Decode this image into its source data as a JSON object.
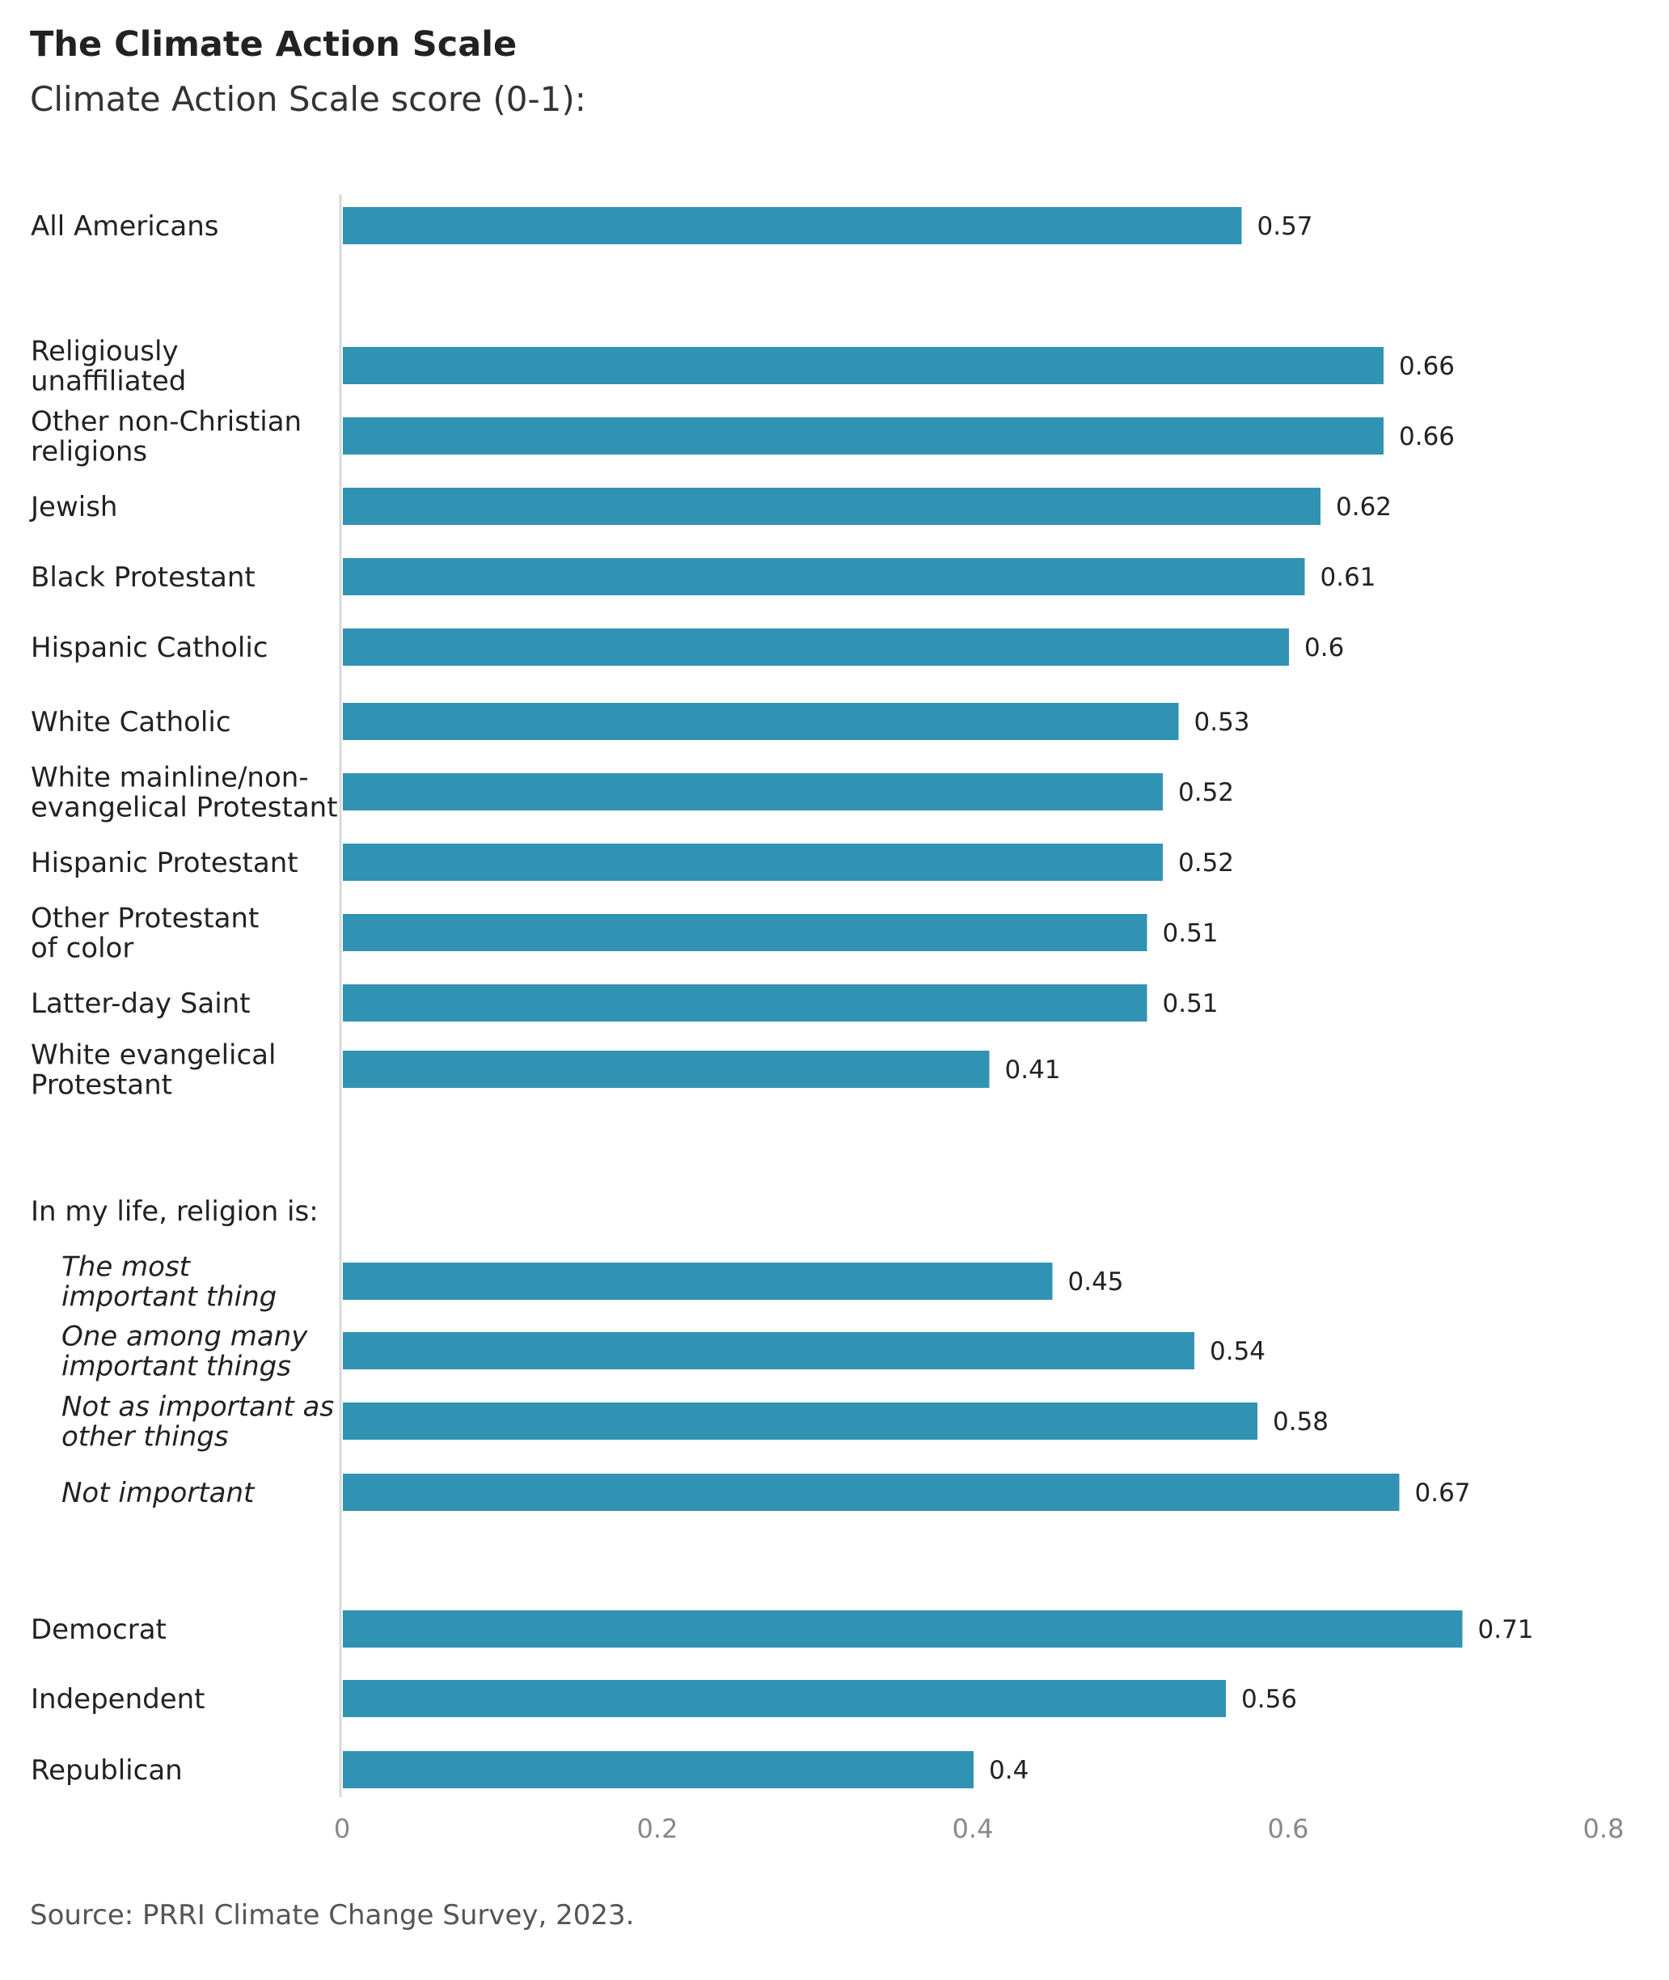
{
  "chart_data": {
    "type": "bar",
    "orientation": "horizontal",
    "title": "The Climate Action Scale",
    "subtitle": "Climate Action Scale score (0-1):",
    "source": "Source: PRRI Climate Change Survey, 2023.",
    "bar_color": "#3193b3",
    "xlim": [
      0,
      0.8
    ],
    "xticks": [
      "0",
      "0.2",
      "0.4",
      "0.6",
      "0.8"
    ],
    "grid": false,
    "section_labels": [
      "In my life, religion is:"
    ],
    "categories": [
      [
        "All Americans"
      ],
      [
        "Religiously",
        "unaffiliated"
      ],
      [
        "Other non-Christian",
        "religions"
      ],
      [
        "Jewish"
      ],
      [
        "Black Protestant"
      ],
      [
        "Hispanic Catholic"
      ],
      [
        "White Catholic"
      ],
      [
        "White mainline/non-",
        "evangelical Protestant"
      ],
      [
        "Hispanic Protestant"
      ],
      [
        "Other Protestant",
        "of color"
      ],
      [
        "Latter-day Saint"
      ],
      [
        "White evangelical",
        "Protestant"
      ],
      [
        "The most",
        "important thing"
      ],
      [
        "One among many",
        "important things"
      ],
      [
        "Not as important as",
        "other things"
      ],
      [
        "Not important"
      ],
      [
        "Democrat"
      ],
      [
        "Independent"
      ],
      [
        "Republican"
      ]
    ],
    "values": [
      0.57,
      0.66,
      0.66,
      0.62,
      0.61,
      0.6,
      0.53,
      0.52,
      0.52,
      0.51,
      0.51,
      0.41,
      0.45,
      0.54,
      0.58,
      0.67,
      0.71,
      0.56,
      0.4
    ],
    "value_labels": [
      "0.57",
      "0.66",
      "0.66",
      "0.62",
      "0.61",
      "0.6",
      "0.53",
      "0.52",
      "0.52",
      "0.51",
      "0.51",
      "0.41",
      "0.45",
      "0.54",
      "0.58",
      "0.67",
      "0.71",
      "0.56",
      "0.4"
    ],
    "italic_categories": [
      false,
      false,
      false,
      false,
      false,
      false,
      false,
      false,
      false,
      false,
      false,
      false,
      true,
      true,
      true,
      true,
      false,
      false,
      false
    ]
  }
}
